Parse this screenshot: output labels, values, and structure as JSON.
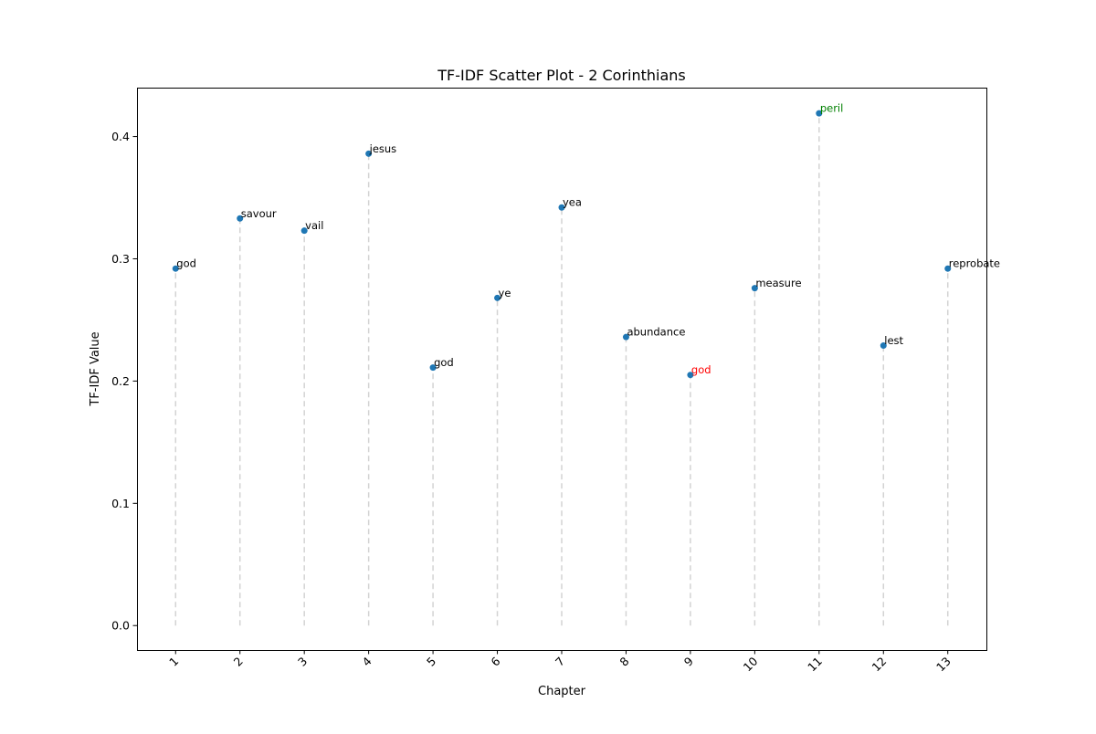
{
  "chart_data": {
    "type": "scatter",
    "title": "TF-IDF Scatter Plot - 2 Corinthians",
    "xlabel": "Chapter",
    "ylabel": "TF-IDF Value",
    "x_ticks": [
      "1",
      "2",
      "3",
      "4",
      "5",
      "6",
      "7",
      "8",
      "9",
      "10",
      "11",
      "12",
      "13"
    ],
    "y_ticks": [
      "0.0",
      "0.1",
      "0.2",
      "0.3",
      "0.4"
    ],
    "xlim": [
      0.4,
      13.6
    ],
    "ylim": [
      -0.02,
      0.44
    ],
    "grid": false,
    "point_color": "#1f77b4",
    "stem_color": "#d3d3d3",
    "points": [
      {
        "x": 1,
        "y": 0.292,
        "label": "god",
        "label_color": "#000000"
      },
      {
        "x": 2,
        "y": 0.333,
        "label": "savour",
        "label_color": "#000000"
      },
      {
        "x": 3,
        "y": 0.323,
        "label": "vail",
        "label_color": "#000000"
      },
      {
        "x": 4,
        "y": 0.386,
        "label": "jesus",
        "label_color": "#000000"
      },
      {
        "x": 5,
        "y": 0.211,
        "label": "god",
        "label_color": "#000000"
      },
      {
        "x": 6,
        "y": 0.268,
        "label": "ye",
        "label_color": "#000000"
      },
      {
        "x": 7,
        "y": 0.342,
        "label": "yea",
        "label_color": "#000000"
      },
      {
        "x": 8,
        "y": 0.236,
        "label": "abundance",
        "label_color": "#000000"
      },
      {
        "x": 9,
        "y": 0.205,
        "label": "god",
        "label_color": "#ff0000"
      },
      {
        "x": 10,
        "y": 0.276,
        "label": "measure",
        "label_color": "#000000"
      },
      {
        "x": 11,
        "y": 0.419,
        "label": "peril",
        "label_color": "#008000"
      },
      {
        "x": 12,
        "y": 0.229,
        "label": "lest",
        "label_color": "#000000"
      },
      {
        "x": 13,
        "y": 0.292,
        "label": "reprobate",
        "label_color": "#000000"
      }
    ]
  }
}
